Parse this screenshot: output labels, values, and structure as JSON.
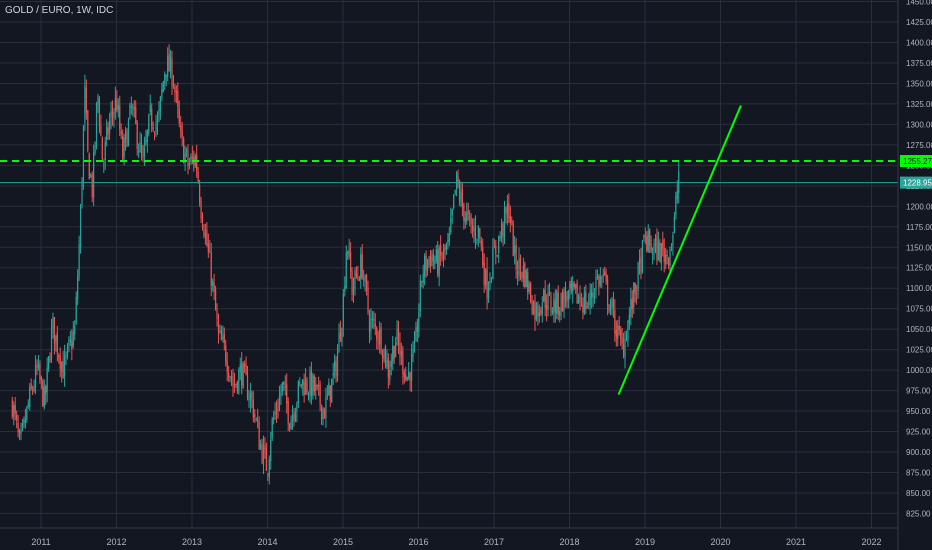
{
  "chart_data": {
    "type": "candlestick",
    "title": "GOLD / EURO, 1W, IDC",
    "x_ticks": [
      "2011",
      "2012",
      "2013",
      "2014",
      "2015",
      "2016",
      "2017",
      "2018",
      "2019",
      "2020",
      "2021",
      "2022"
    ],
    "y_ticks": [
      "1450.00",
      "1425.00",
      "1400.00",
      "1375.00",
      "1350.00",
      "1325.00",
      "1300.00",
      "1275.00",
      "1250.00",
      "1225.00",
      "1200.00",
      "1175.00",
      "1150.00",
      "1125.00",
      "1100.00",
      "1075.00",
      "1050.00",
      "1025.00",
      "1000.00",
      "975.00",
      "950.00",
      "925.00",
      "900.00",
      "875.00",
      "850.00",
      "825.00"
    ],
    "y_range": [
      810,
      1455
    ],
    "x_range": [
      2010.6,
      2023.0
    ],
    "anchors": [
      [
        2010.62,
        960
      ],
      [
        2010.72,
        905
      ],
      [
        2010.85,
        965
      ],
      [
        2010.95,
        1000
      ],
      [
        2011.05,
        960
      ],
      [
        2011.15,
        1055
      ],
      [
        2011.3,
        1000
      ],
      [
        2011.45,
        1050
      ],
      [
        2011.52,
        1180
      ],
      [
        2011.58,
        1340
      ],
      [
        2011.62,
        1260
      ],
      [
        2011.68,
        1220
      ],
      [
        2011.75,
        1340
      ],
      [
        2011.82,
        1250
      ],
      [
        2011.9,
        1300
      ],
      [
        2012.0,
        1330
      ],
      [
        2012.08,
        1260
      ],
      [
        2012.2,
        1320
      ],
      [
        2012.35,
        1250
      ],
      [
        2012.45,
        1310
      ],
      [
        2012.55,
        1300
      ],
      [
        2012.65,
        1375
      ],
      [
        2012.75,
        1360
      ],
      [
        2012.85,
        1280
      ],
      [
        2012.95,
        1250
      ],
      [
        2013.05,
        1260
      ],
      [
        2013.12,
        1200
      ],
      [
        2013.25,
        1120
      ],
      [
        2013.35,
        1040
      ],
      [
        2013.45,
        1020
      ],
      [
        2013.55,
        980
      ],
      [
        2013.65,
        1000
      ],
      [
        2013.8,
        960
      ],
      [
        2013.9,
        910
      ],
      [
        2014.0,
        880
      ],
      [
        2014.05,
        930
      ],
      [
        2014.2,
        980
      ],
      [
        2014.3,
        940
      ],
      [
        2014.45,
        985
      ],
      [
        2014.6,
        980
      ],
      [
        2014.75,
        950
      ],
      [
        2014.9,
        1000
      ],
      [
        2015.0,
        1080
      ],
      [
        2015.05,
        1160
      ],
      [
        2015.12,
        1100
      ],
      [
        2015.25,
        1130
      ],
      [
        2015.35,
        1060
      ],
      [
        2015.5,
        1040
      ],
      [
        2015.6,
        1000
      ],
      [
        2015.7,
        1040
      ],
      [
        2015.85,
        990
      ],
      [
        2015.95,
        1020
      ],
      [
        2016.05,
        1120
      ],
      [
        2016.15,
        1140
      ],
      [
        2016.25,
        1130
      ],
      [
        2016.4,
        1150
      ],
      [
        2016.5,
        1230
      ],
      [
        2016.58,
        1200
      ],
      [
        2016.7,
        1170
      ],
      [
        2016.8,
        1170
      ],
      [
        2016.9,
        1100
      ],
      [
        2017.0,
        1140
      ],
      [
        2017.1,
        1170
      ],
      [
        2017.2,
        1200
      ],
      [
        2017.28,
        1130
      ],
      [
        2017.4,
        1120
      ],
      [
        2017.55,
        1070
      ],
      [
        2017.65,
        1090
      ],
      [
        2017.75,
        1080
      ],
      [
        2017.85,
        1080
      ],
      [
        2017.95,
        1090
      ],
      [
        2018.1,
        1090
      ],
      [
        2018.25,
        1080
      ],
      [
        2018.35,
        1110
      ],
      [
        2018.45,
        1110
      ],
      [
        2018.55,
        1075
      ],
      [
        2018.65,
        1040
      ],
      [
        2018.7,
        1025
      ],
      [
        2018.8,
        1070
      ],
      [
        2018.9,
        1110
      ],
      [
        2019.0,
        1160
      ],
      [
        2019.08,
        1150
      ],
      [
        2019.2,
        1145
      ],
      [
        2019.3,
        1140
      ],
      [
        2019.38,
        1170
      ],
      [
        2019.45,
        1245
      ]
    ],
    "horizontal_line": {
      "value": 1255.27,
      "label": "1255.27",
      "color": "#00ff00",
      "style": "dashed"
    },
    "price_line": {
      "value": 1228.95,
      "label": "1228.95",
      "color": "#26a69a"
    },
    "trend_line": {
      "from": [
        2018.65,
        970
      ],
      "to": [
        2020.27,
        1323
      ],
      "color": "#00ff00"
    },
    "colors": {
      "up": "#26a69a",
      "down": "#ef5350",
      "background": "#131722",
      "grid": "#2a2e39",
      "axis_text": "#b2b5be"
    }
  }
}
